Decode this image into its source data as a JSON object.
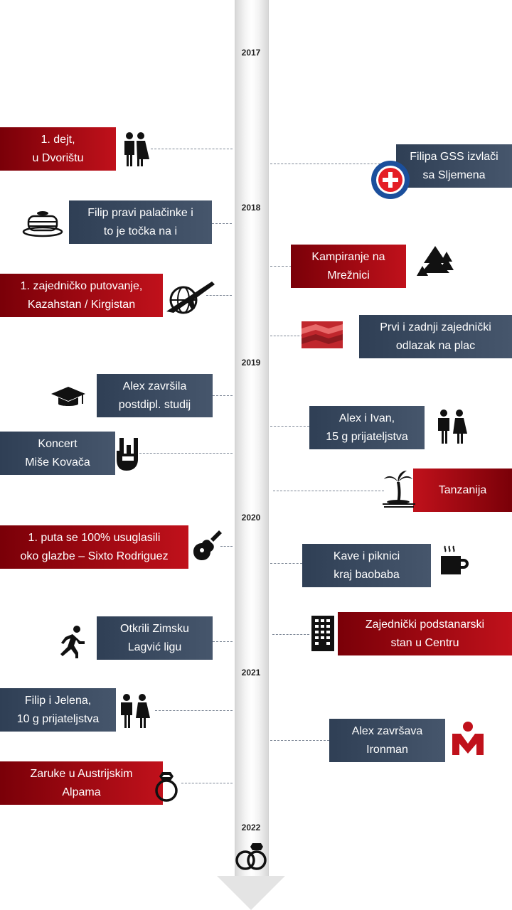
{
  "years": [
    "2017",
    "2018",
    "2019",
    "2020",
    "2021",
    "2022"
  ],
  "events": {
    "e1": "1. dejt,\nu Dvorištu",
    "e2": "Filipa GSS izvlači\nsa Sljemena",
    "e3": "Filip pravi palačinke i\nto je točka na i",
    "e4": "Kampiranje na\nMrežnici",
    "e5": "1. zajedničko putovanje,\nKazahstan / Kirgistan",
    "e6": "Prvi i zadnji zajednički\nodlazak na plac",
    "e7": "Alex završila\npostdipl. studij",
    "e8": "Alex i Ivan,\n15 g prijateljstva",
    "e9": "Koncert\nMiše Kovača",
    "e10": "Tanzanija",
    "e11": "1. puta se 100% usuglasili\noko glazbe – Sixto Rodriguez",
    "e12": "Kave i piknici\nkraj baobaba",
    "e13": "Otkrili Zimsku\nLagvić ligu",
    "e14": "Zajednički podstanarski\nstan u Centru",
    "e15": "Filip i Jelena,\n10 g prijateljstva",
    "e16": "Alex završava\nIronman",
    "e17": "Zaruke u Austrijskim\nAlpama"
  },
  "colors": {
    "red": "#c0111b",
    "dark_red": "#7a0008",
    "slate": "#3a4a60"
  }
}
